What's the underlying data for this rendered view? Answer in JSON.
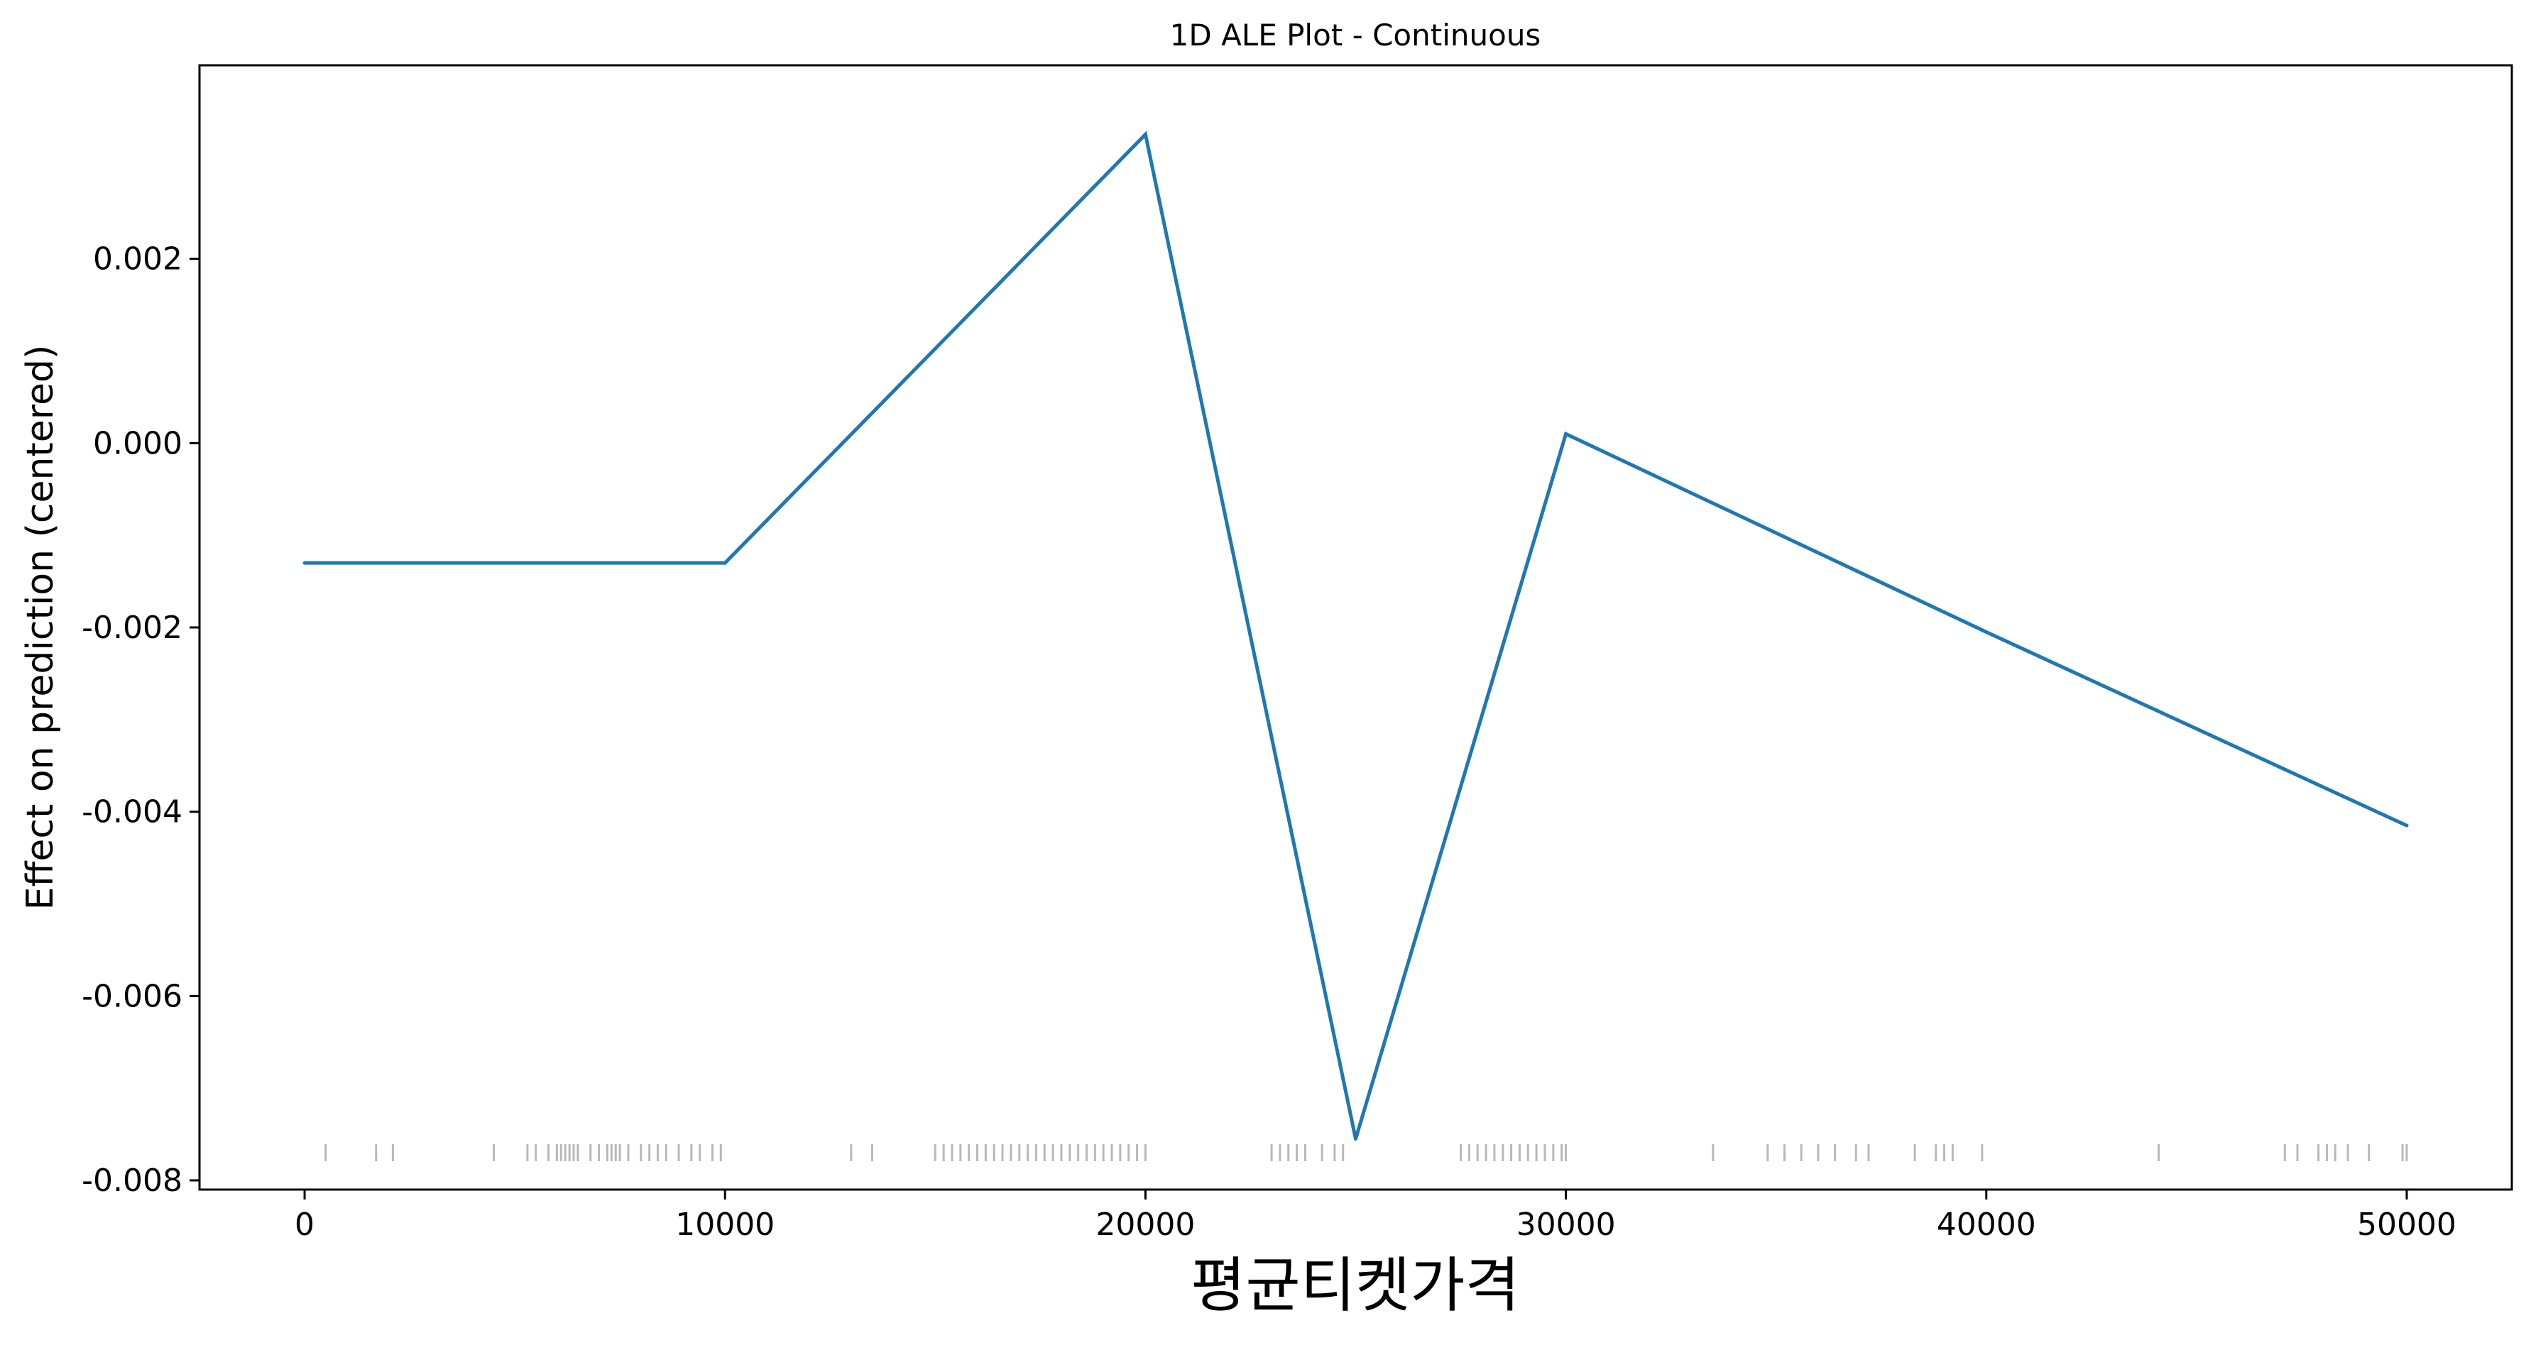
{
  "chart_data": {
    "type": "line",
    "title": "1D ALE Plot - Continuous",
    "xlabel": "평균티켓가격",
    "ylabel": "Effect on prediction (centered)",
    "xlim": [
      -2500,
      52500
    ],
    "ylim": [
      -0.0081,
      0.0041
    ],
    "x_ticks": [
      0,
      10000,
      20000,
      30000,
      40000,
      50000
    ],
    "x_tick_labels": [
      "0",
      "10000",
      "20000",
      "30000",
      "40000",
      "50000"
    ],
    "y_ticks": [
      0.002,
      0.0,
      -0.002,
      -0.004,
      -0.006,
      -0.008
    ],
    "y_tick_labels": [
      "0.002",
      "0.000",
      "-0.002",
      "-0.004",
      "-0.006",
      "-0.008"
    ],
    "grid": false,
    "line_color": "#1f77b4",
    "rug_color": "#000000",
    "series": [
      {
        "x": [
          0,
          10000,
          20000,
          25000,
          30000,
          40000,
          50000
        ],
        "values": [
          -0.0013,
          -0.0013,
          0.00335,
          -0.00755,
          0.0001,
          -0.00205,
          -0.00415
        ]
      }
    ],
    "rug_y": -0.0077,
    "rug_x": [
      500,
      1700,
      2100,
      4500,
      5300,
      5500,
      5800,
      6000,
      6100,
      6200,
      6300,
      6400,
      6500,
      6800,
      7000,
      7200,
      7300,
      7400,
      7500,
      7700,
      8000,
      8200,
      8400,
      8600,
      8900,
      9200,
      9400,
      9700,
      9900,
      13000,
      13500,
      15000,
      15200,
      15400,
      15600,
      15800,
      16000,
      16200,
      16400,
      16600,
      16800,
      17000,
      17200,
      17400,
      17600,
      17800,
      18000,
      18200,
      18400,
      18600,
      18800,
      19000,
      19200,
      19400,
      19600,
      19800,
      20000,
      23000,
      23200,
      23400,
      23600,
      23800,
      24200,
      24500,
      24700,
      27500,
      27700,
      27900,
      28100,
      28300,
      28500,
      28700,
      28900,
      29100,
      29300,
      29500,
      29700,
      29900,
      30000,
      33500,
      34800,
      35200,
      35600,
      36000,
      36400,
      36900,
      37200,
      38300,
      38800,
      39000,
      39200,
      39900,
      44100,
      47100,
      47400,
      47900,
      48100,
      48300,
      48600,
      49100,
      49900,
      50000
    ]
  }
}
